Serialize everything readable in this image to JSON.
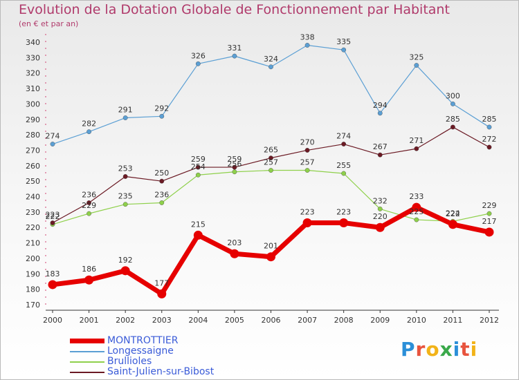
{
  "title": "Evolution de la Dotation Globale de Fonctionnement par Habitant",
  "subtitle": "(en € et par an)",
  "logo": {
    "text": "Proxiti",
    "letters": [
      "P",
      "r",
      "o",
      "x",
      "i",
      "t",
      "i"
    ],
    "colors": [
      "#2b8fd8",
      "#e8543e",
      "#f2b318",
      "#3aa94a",
      "#2b8fd8",
      "#e8543e",
      "#f2b318"
    ]
  },
  "chart_data": {
    "type": "line",
    "x": [
      "2000",
      "2001",
      "2002",
      "2003",
      "2004",
      "2005",
      "2006",
      "2007",
      "2008",
      "2009",
      "2010",
      "2011",
      "2012"
    ],
    "ylim": [
      170,
      340
    ],
    "yticks": [
      170,
      180,
      190,
      200,
      210,
      220,
      230,
      240,
      250,
      260,
      270,
      280,
      290,
      300,
      310,
      320,
      330,
      340
    ],
    "grid": false,
    "legend_position": "bottom-left",
    "series": [
      {
        "name": "MONTROTTIER",
        "color": "#e60000",
        "bold": true,
        "values": [
          183,
          186,
          192,
          177,
          215,
          203,
          201,
          223,
          223,
          220,
          233,
          222,
          217
        ],
        "labels": [
          "183",
          "186",
          "192",
          "177",
          "215",
          "203",
          "201",
          "223",
          "223",
          "220",
          "233",
          "222",
          "217"
        ]
      },
      {
        "name": "Longessaigne",
        "color": "#5b9fd4",
        "bold": false,
        "values": [
          274,
          282,
          291,
          292,
          326,
          331,
          324,
          338,
          335,
          294,
          325,
          300,
          285
        ],
        "labels": [
          "274",
          "282",
          "291",
          "292",
          "326",
          "331",
          "324",
          "338",
          "335",
          "294",
          "325",
          "300",
          "285"
        ]
      },
      {
        "name": "Brullioles",
        "color": "#8ed04a",
        "bold": false,
        "values": [
          222,
          229,
          235,
          236,
          254,
          256,
          257,
          257,
          255,
          232,
          225,
          224,
          229
        ],
        "labels": [
          "222",
          "229",
          "235",
          "236",
          "254",
          "256",
          "257",
          "257",
          "255",
          "232",
          "225",
          "224",
          "229"
        ]
      },
      {
        "name": "Saint-Julien-sur-Bibost",
        "color": "#6b1a24",
        "bold": false,
        "values": [
          223,
          236,
          253,
          250,
          259,
          259,
          265,
          270,
          274,
          267,
          271,
          285,
          272
        ],
        "labels": [
          "223",
          "236",
          "253",
          "250",
          "259",
          "259",
          "265",
          "270",
          "274",
          "267",
          "271",
          "285",
          "272"
        ]
      }
    ]
  }
}
